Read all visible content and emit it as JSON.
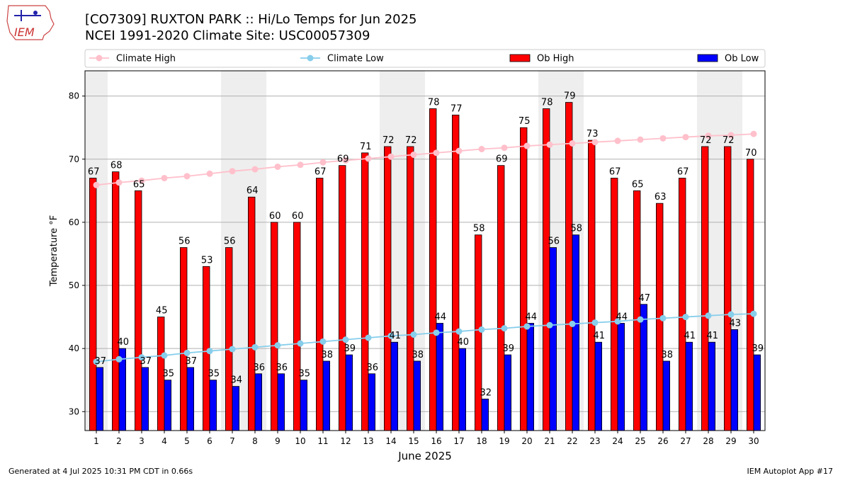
{
  "header": {
    "title": "[CO7309] RUXTON PARK :: Hi/Lo Temps for Jun 2025",
    "subtitle": "NCEI 1991-2020 Climate Site: USC00057309",
    "logo_text": "IEM"
  },
  "footer": {
    "left": "Generated at 4 Jul 2025 10:31 PM CDT in 0.66s",
    "right": "IEM Autoplot App #17"
  },
  "colors": {
    "ob_high": "#ff0000",
    "ob_low": "#0000ff",
    "climate_high": "#ffc0cb",
    "climate_low": "#87ceeb",
    "weekend_band": "#eeeeee",
    "grid": "#b0b0b0"
  },
  "chart_data": {
    "type": "bar",
    "xlabel": "June 2025",
    "ylabel": "Temperature °F",
    "ylim": [
      27,
      84
    ],
    "yticks": [
      30,
      40,
      50,
      60,
      70,
      80
    ],
    "grid": "horizontal",
    "legend_placement": "top",
    "categories": [
      "1",
      "2",
      "3",
      "4",
      "5",
      "6",
      "7",
      "8",
      "9",
      "10",
      "11",
      "12",
      "13",
      "14",
      "15",
      "16",
      "17",
      "18",
      "19",
      "20",
      "21",
      "22",
      "23",
      "24",
      "25",
      "26",
      "27",
      "28",
      "29",
      "30"
    ],
    "weekend_days": [
      1,
      7,
      8,
      14,
      15,
      21,
      22,
      28,
      29
    ],
    "series": [
      {
        "name": "Climate High",
        "kind": "line",
        "values": [
          65.9,
          66.3,
          66.6,
          67.0,
          67.3,
          67.7,
          68.1,
          68.4,
          68.8,
          69.1,
          69.5,
          69.8,
          70.1,
          70.4,
          70.7,
          71.0,
          71.3,
          71.6,
          71.8,
          72.1,
          72.3,
          72.5,
          72.7,
          72.9,
          73.1,
          73.3,
          73.5,
          73.7,
          73.8,
          74.0
        ]
      },
      {
        "name": "Climate Low",
        "kind": "line",
        "values": [
          37.9,
          38.3,
          38.6,
          38.9,
          39.3,
          39.6,
          39.9,
          40.2,
          40.5,
          40.8,
          41.1,
          41.4,
          41.7,
          42.0,
          42.2,
          42.5,
          42.7,
          43.0,
          43.2,
          43.5,
          43.7,
          43.9,
          44.1,
          44.3,
          44.6,
          44.8,
          45.0,
          45.2,
          45.4,
          45.5
        ]
      },
      {
        "name": "Ob High",
        "kind": "bar",
        "values": [
          67,
          68,
          65,
          45,
          56,
          53,
          56,
          64,
          60,
          60,
          67,
          69,
          71,
          72,
          72,
          78,
          77,
          58,
          69,
          75,
          78,
          79,
          73,
          67,
          65,
          63,
          67,
          72,
          72,
          70
        ]
      },
      {
        "name": "Ob Low",
        "kind": "bar",
        "values": [
          37,
          40,
          37,
          35,
          37,
          35,
          34,
          36,
          36,
          35,
          38,
          39,
          36,
          41,
          38,
          44,
          40,
          32,
          39,
          44,
          56,
          58,
          41,
          44,
          47,
          38,
          41,
          41,
          43,
          39
        ]
      }
    ]
  }
}
